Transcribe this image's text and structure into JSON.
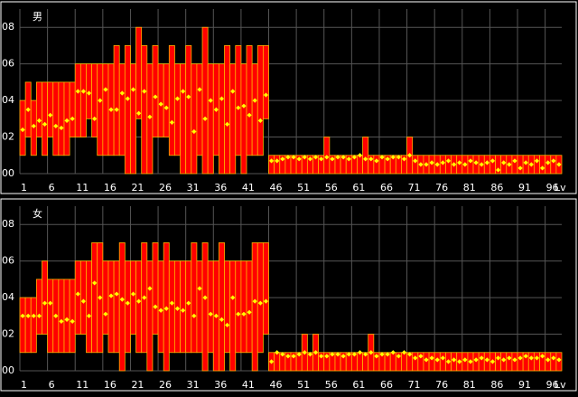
{
  "chart_data": [
    {
      "type": "range-bar",
      "title": "男",
      "xlabel": "Lv",
      "x": [
        1,
        2,
        3,
        4,
        5,
        6,
        7,
        8,
        9,
        10,
        11,
        12,
        13,
        14,
        15,
        16,
        17,
        18,
        19,
        20,
        21,
        22,
        23,
        24,
        25,
        26,
        27,
        28,
        29,
        30,
        31,
        32,
        33,
        34,
        35,
        36,
        37,
        38,
        39,
        40,
        41,
        42,
        43,
        44,
        45,
        46,
        47,
        48,
        49,
        50,
        51,
        52,
        53,
        54,
        55,
        56,
        57,
        58,
        59,
        60,
        61,
        62,
        63,
        64,
        65,
        66,
        67,
        68,
        69,
        70,
        71,
        72,
        73,
        74,
        75,
        76,
        77,
        78,
        79,
        80,
        81,
        82,
        83,
        84,
        85,
        86,
        87,
        88,
        89,
        90,
        91,
        92,
        93,
        94,
        95,
        96,
        97,
        98
      ],
      "low": [
        0.1,
        0.2,
        0.1,
        0.2,
        0.1,
        0.2,
        0.1,
        0.1,
        0.1,
        0.2,
        0.2,
        0.2,
        0.3,
        0.2,
        0.1,
        0.1,
        0.1,
        0.1,
        0.1,
        0,
        0,
        0.3,
        0,
        0,
        0.2,
        0.2,
        0.2,
        0.1,
        0.1,
        0,
        0,
        0,
        0.1,
        0,
        0,
        0.1,
        0,
        0,
        0,
        0.1,
        0,
        0.1,
        0.1,
        0.1,
        0.3,
        0,
        0,
        0,
        0,
        0,
        0,
        0,
        0,
        0,
        0,
        0,
        0,
        0,
        0,
        0,
        0,
        0,
        0,
        0,
        0,
        0,
        0,
        0,
        0,
        0,
        0,
        0,
        0,
        0,
        0,
        0,
        0,
        0,
        0,
        0,
        0,
        0,
        0,
        0,
        0,
        0,
        0,
        0,
        0,
        0,
        0,
        0,
        0,
        0,
        0,
        0,
        0,
        0
      ],
      "high": [
        0.4,
        0.5,
        0.4,
        0.5,
        0.5,
        0.5,
        0.5,
        0.5,
        0.5,
        0.5,
        0.6,
        0.6,
        0.6,
        0.6,
        0.6,
        0.6,
        0.6,
        0.7,
        0.6,
        0.7,
        0.6,
        0.8,
        0.7,
        0.6,
        0.7,
        0.6,
        0.6,
        0.7,
        0.6,
        0.6,
        0.7,
        0.6,
        0.6,
        0.8,
        0.6,
        0.6,
        0.6,
        0.7,
        0.6,
        0.7,
        0.6,
        0.7,
        0.6,
        0.7,
        0.7,
        0.1,
        0.1,
        0.1,
        0.1,
        0.1,
        0.1,
        0.1,
        0.1,
        0.1,
        0.1,
        0.2,
        0.1,
        0.1,
        0.1,
        0.1,
        0.1,
        0.1,
        0.2,
        0.1,
        0.1,
        0.1,
        0.1,
        0.1,
        0.1,
        0.1,
        0.2,
        0.1,
        0.1,
        0.1,
        0.1,
        0.1,
        0.1,
        0.1,
        0.1,
        0.1,
        0.1,
        0.1,
        0.1,
        0.1,
        0.1,
        0.1,
        0.1,
        0.1,
        0.1,
        0.1,
        0.1,
        0.1,
        0.1,
        0.1,
        0.1,
        0.1,
        0.1,
        0.1
      ],
      "mean": [
        0.24,
        0.35,
        0.26,
        0.29,
        0.27,
        0.32,
        0.26,
        0.25,
        0.29,
        0.3,
        0.45,
        0.45,
        0.44,
        0.3,
        0.4,
        0.46,
        0.35,
        0.35,
        0.44,
        0.41,
        0.46,
        0.33,
        0.45,
        0.31,
        0.42,
        0.38,
        0.36,
        0.28,
        0.41,
        0.45,
        0.42,
        0.23,
        0.46,
        0.3,
        0.4,
        0.35,
        0.41,
        0.27,
        0.45,
        0.36,
        0.37,
        0.32,
        0.4,
        0.29,
        0.43,
        0.07,
        0.07,
        0.08,
        0.09,
        0.09,
        0.08,
        0.09,
        0.08,
        0.09,
        0.08,
        0.09,
        0.08,
        0.09,
        0.09,
        0.08,
        0.09,
        0.1,
        0.08,
        0.08,
        0.07,
        0.09,
        0.08,
        0.09,
        0.09,
        0.08,
        0.1,
        0.07,
        0.05,
        0.05,
        0.06,
        0.05,
        0.06,
        0.07,
        0.05,
        0.06,
        0.05,
        0.07,
        0.06,
        0.05,
        0.06,
        0.07,
        0.02,
        0.06,
        0.05,
        0.07,
        0.03,
        0.06,
        0.05,
        0.07,
        0.03,
        0.06,
        0.07,
        0.05
      ],
      "bar_color": "#ff0000",
      "edge_color": "#ffb000",
      "marker_color": "#ffff00",
      "grid_color": "#555555",
      "xlim": [
        0.5,
        98.5
      ],
      "xticks": [
        1,
        6,
        11,
        16,
        21,
        26,
        31,
        36,
        41,
        46,
        51,
        56,
        61,
        66,
        71,
        76,
        81,
        86,
        91,
        96
      ],
      "ylim": [
        0,
        0.9
      ],
      "yticks": [
        {
          "value": 0,
          "label": "00"
        },
        {
          "value": 0.2,
          "label": "02"
        },
        {
          "value": 0.4,
          "label": "04"
        },
        {
          "value": 0.6,
          "label": "06"
        },
        {
          "value": 0.8,
          "label": "08"
        }
      ],
      "grid": true
    },
    {
      "type": "range-bar",
      "title": "女",
      "xlabel": "Lv",
      "x": [
        1,
        2,
        3,
        4,
        5,
        6,
        7,
        8,
        9,
        10,
        11,
        12,
        13,
        14,
        15,
        16,
        17,
        18,
        19,
        20,
        21,
        22,
        23,
        24,
        25,
        26,
        27,
        28,
        29,
        30,
        31,
        32,
        33,
        34,
        35,
        36,
        37,
        38,
        39,
        40,
        41,
        42,
        43,
        44,
        45,
        46,
        47,
        48,
        49,
        50,
        51,
        52,
        53,
        54,
        55,
        56,
        57,
        58,
        59,
        60,
        61,
        62,
        63,
        64,
        65,
        66,
        67,
        68,
        69,
        70,
        71,
        72,
        73,
        74,
        75,
        76,
        77,
        78,
        79,
        80,
        81,
        82,
        83,
        84,
        85,
        86,
        87,
        88,
        89,
        90,
        91,
        92,
        93,
        94,
        95,
        96,
        97,
        98
      ],
      "low": [
        0.1,
        0.1,
        0.1,
        0.2,
        0.2,
        0.1,
        0.1,
        0.1,
        0.1,
        0.1,
        0.2,
        0.2,
        0.1,
        0.1,
        0.1,
        0.2,
        0.1,
        0.1,
        0,
        0.1,
        0.2,
        0.1,
        0.1,
        0,
        0.2,
        0.1,
        0,
        0.1,
        0.1,
        0.1,
        0.1,
        0.1,
        0.1,
        0,
        0.1,
        0,
        0,
        0.1,
        0,
        0.1,
        0.1,
        0.1,
        0,
        0.1,
        0.2,
        0,
        0,
        0,
        0,
        0,
        0,
        0,
        0,
        0,
        0,
        0,
        0,
        0,
        0,
        0,
        0,
        0,
        0,
        0,
        0,
        0,
        0,
        0,
        0,
        0,
        0,
        0,
        0,
        0,
        0,
        0,
        0,
        0,
        0,
        0,
        0,
        0,
        0,
        0,
        0,
        0,
        0,
        0,
        0,
        0,
        0,
        0,
        0,
        0,
        0,
        0,
        0,
        0
      ],
      "high": [
        0.4,
        0.4,
        0.4,
        0.5,
        0.6,
        0.5,
        0.5,
        0.5,
        0.5,
        0.5,
        0.6,
        0.6,
        0.6,
        0.7,
        0.7,
        0.6,
        0.6,
        0.6,
        0.7,
        0.6,
        0.6,
        0.6,
        0.7,
        0.6,
        0.7,
        0.6,
        0.7,
        0.6,
        0.6,
        0.6,
        0.6,
        0.7,
        0.6,
        0.7,
        0.6,
        0.6,
        0.7,
        0.6,
        0.6,
        0.6,
        0.6,
        0.6,
        0.7,
        0.7,
        0.7,
        0.1,
        0.1,
        0.1,
        0.1,
        0.1,
        0.1,
        0.2,
        0.1,
        0.2,
        0.1,
        0.1,
        0.1,
        0.1,
        0.1,
        0.1,
        0.1,
        0.1,
        0.1,
        0.2,
        0.1,
        0.1,
        0.1,
        0.1,
        0.1,
        0.1,
        0.1,
        0.1,
        0.1,
        0.1,
        0.1,
        0.1,
        0.1,
        0.1,
        0.1,
        0.1,
        0.1,
        0.1,
        0.1,
        0.1,
        0.1,
        0.1,
        0.1,
        0.1,
        0.1,
        0.1,
        0.1,
        0.1,
        0.1,
        0.1,
        0.1,
        0.1,
        0.1,
        0.1
      ],
      "mean": [
        0.3,
        0.3,
        0.3,
        0.3,
        0.37,
        0.37,
        0.3,
        0.27,
        0.28,
        0.27,
        0.42,
        0.38,
        0.3,
        0.48,
        0.4,
        0.31,
        0.41,
        0.42,
        0.39,
        0.37,
        0.42,
        0.38,
        0.4,
        0.45,
        0.35,
        0.33,
        0.34,
        0.37,
        0.34,
        0.33,
        0.37,
        0.3,
        0.45,
        0.4,
        0.31,
        0.3,
        0.28,
        0.25,
        0.4,
        0.31,
        0.31,
        0.32,
        0.38,
        0.37,
        0.38,
        0.05,
        0.1,
        0.09,
        0.08,
        0.08,
        0.09,
        0.1,
        0.09,
        0.1,
        0.08,
        0.08,
        0.09,
        0.09,
        0.08,
        0.09,
        0.09,
        0.1,
        0.09,
        0.1,
        0.08,
        0.09,
        0.09,
        0.1,
        0.08,
        0.1,
        0.09,
        0.07,
        0.08,
        0.06,
        0.07,
        0.06,
        0.07,
        0.05,
        0.06,
        0.05,
        0.06,
        0.05,
        0.06,
        0.07,
        0.06,
        0.05,
        0.07,
        0.06,
        0.07,
        0.06,
        0.07,
        0.08,
        0.07,
        0.07,
        0.08,
        0.06,
        0.07,
        0.06
      ],
      "bar_color": "#ff0000",
      "edge_color": "#ffb000",
      "marker_color": "#ffff00",
      "grid_color": "#555555",
      "xlim": [
        0.5,
        98.5
      ],
      "xticks": [
        1,
        6,
        11,
        16,
        21,
        26,
        31,
        36,
        41,
        46,
        51,
        56,
        61,
        66,
        71,
        76,
        81,
        86,
        91,
        96
      ],
      "ylim": [
        0,
        0.9
      ],
      "yticks": [
        {
          "value": 0,
          "label": "00"
        },
        {
          "value": 0.2,
          "label": "02"
        },
        {
          "value": 0.4,
          "label": "04"
        },
        {
          "value": 0.6,
          "label": "06"
        },
        {
          "value": 0.8,
          "label": "08"
        }
      ],
      "grid": true
    }
  ]
}
